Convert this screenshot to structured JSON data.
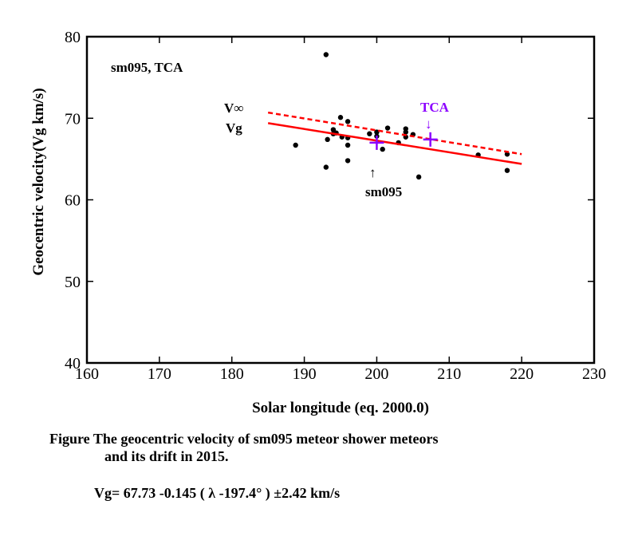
{
  "chart_data": {
    "type": "scatter",
    "title": "",
    "xlabel": "Solar longitude (eq. 2000.0)",
    "ylabel": "Geocentric velocity(Vg km/s)",
    "xlim": [
      160,
      230
    ],
    "ylim": [
      40,
      80
    ],
    "xticks": [
      "160",
      "170",
      "180",
      "190",
      "200",
      "210",
      "220",
      "230"
    ],
    "yticks": [
      "40",
      "50",
      "60",
      "70",
      "80"
    ],
    "grid": false,
    "legend": "none",
    "series": [
      {
        "name": "",
        "marker": "dot",
        "color": "#000000",
        "points": [
          [
            188.8,
            66.7
          ],
          [
            193.0,
            77.8
          ],
          [
            193.0,
            64.0
          ],
          [
            193.2,
            67.4
          ],
          [
            194.0,
            68.1
          ],
          [
            194.0,
            68.6
          ],
          [
            194.4,
            68.2
          ],
          [
            195.0,
            70.1
          ],
          [
            195.2,
            67.7
          ],
          [
            196.0,
            69.6
          ],
          [
            196.0,
            66.7
          ],
          [
            196.0,
            64.8
          ],
          [
            196.0,
            67.6
          ],
          [
            199.0,
            68.1
          ],
          [
            200.0,
            68.3
          ],
          [
            200.0,
            67.8
          ],
          [
            200.8,
            66.2
          ],
          [
            201.5,
            68.8
          ],
          [
            203.0,
            67.0
          ],
          [
            204.0,
            68.7
          ],
          [
            204.0,
            68.3
          ],
          [
            204.0,
            67.7
          ],
          [
            205.0,
            68.0
          ],
          [
            205.8,
            62.8
          ],
          [
            214.0,
            65.5
          ],
          [
            218.0,
            65.6
          ],
          [
            218.0,
            63.6
          ]
        ]
      },
      {
        "name": "Vg",
        "type": "line",
        "color": "#ff0000",
        "style": "solid",
        "points": [
          [
            185,
            69.4
          ],
          [
            220,
            64.4
          ]
        ]
      },
      {
        "name": "V∞",
        "type": "line",
        "color": "#ff0000",
        "style": "dashed",
        "points": [
          [
            185,
            70.7
          ],
          [
            220,
            65.6
          ]
        ]
      },
      {
        "name": "sm095 / TCA",
        "marker": "cross",
        "color": "#8b00ff",
        "points": [
          [
            200.0,
            67.0
          ],
          [
            207.4,
            67.4
          ]
        ]
      }
    ],
    "annotations": {
      "corner": "sm095, TCA",
      "vinf": "V∞",
      "vg": "Vg",
      "tca": "TCA",
      "sm095": "sm095",
      "arrow_down": "↓",
      "arrow_up": "↑"
    }
  },
  "caption": {
    "line1": "Figure    The geocentric velocity of sm095 meteor shower meteors",
    "line2": "and its drift in 2015.",
    "formula": "Vg= 67.73 -0.145 ( λ  -197.4°  ) ±2.42 km/s"
  }
}
